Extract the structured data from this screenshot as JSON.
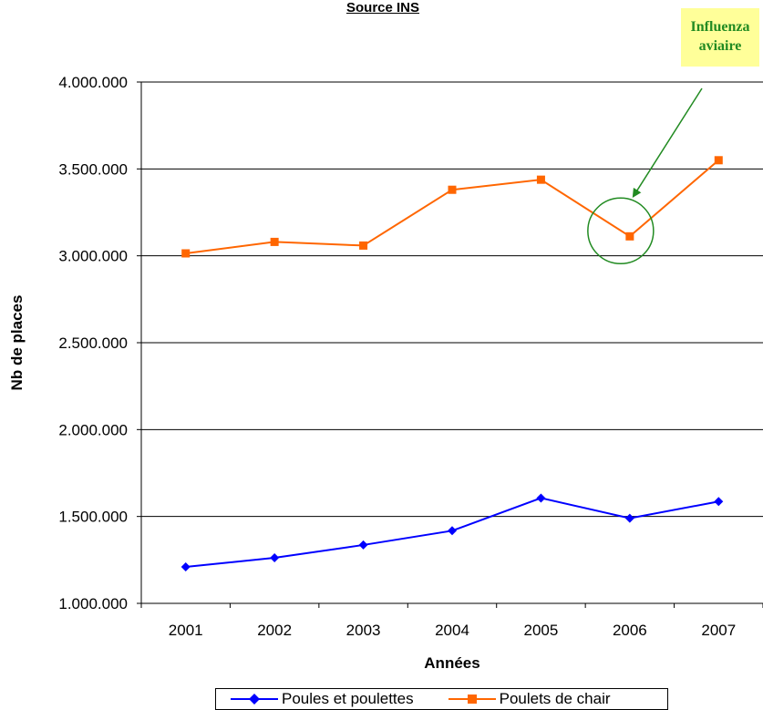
{
  "chart_data": {
    "type": "line",
    "subtitle": "Source INS",
    "xlabel": "Années",
    "ylabel": "Nb de places",
    "x": [
      "2001",
      "2002",
      "2003",
      "2004",
      "2005",
      "2006",
      "2007"
    ],
    "ylim": [
      1000000,
      4000000
    ],
    "yticks": [
      1000000,
      1500000,
      2000000,
      2500000,
      3000000,
      3500000,
      4000000
    ],
    "ytick_labels": [
      "1.000.000",
      "1.500.000",
      "2.000.000",
      "2.500.000",
      "3.000.000",
      "3.500.000",
      "4.000.000"
    ],
    "grid": "horizontal",
    "legend_placement": "bottom",
    "series": [
      {
        "name": "Poules et poulettes",
        "color": "#0000ff",
        "marker": "diamond",
        "values": [
          1210000,
          1262000,
          1336000,
          1418000,
          1606000,
          1490000,
          1586000
        ]
      },
      {
        "name": "Poulets de chair",
        "color": "#ff6600",
        "marker": "square",
        "values": [
          3014000,
          3080000,
          3059000,
          3380000,
          3438000,
          3112000,
          3550000
        ]
      }
    ],
    "annotations": [
      {
        "text_lines": [
          "Influenza",
          "aviaire"
        ],
        "target_series": "Poulets de chair",
        "target_x": "2006",
        "marker": "circle",
        "color": "#228b22",
        "box_color": "#ffff99"
      }
    ]
  }
}
